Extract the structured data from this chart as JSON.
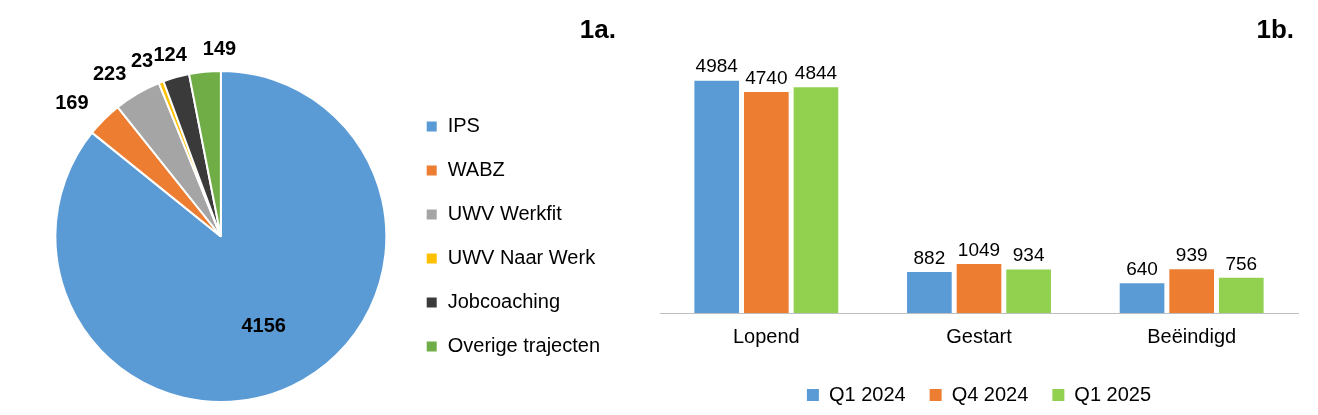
{
  "chart_data": [
    {
      "type": "pie",
      "title": "1a.",
      "categories": [
        "IPS",
        "WABZ",
        "UWV Werkfit",
        "UWV Naar Werk",
        "Jobcoaching",
        "Overige trajecten"
      ],
      "values": [
        4156,
        169,
        223,
        23,
        124,
        149
      ],
      "colors": [
        "#5b9bd5",
        "#ed7d31",
        "#a5a5a5",
        "#ffc000",
        "#3a3a3a",
        "#70ad47"
      ],
      "data_labels": true,
      "legend": "right"
    },
    {
      "type": "bar",
      "title": "1b.",
      "categories": [
        "Lopend",
        "Gestart",
        "Beëindigd"
      ],
      "series": [
        {
          "name": "Q1 2024",
          "color": "#5b9bd5",
          "values": [
            4984,
            882,
            640
          ]
        },
        {
          "name": "Q4 2024",
          "color": "#ed7d31",
          "values": [
            4740,
            1049,
            939
          ]
        },
        {
          "name": "Q1 2025",
          "color": "#92d050",
          "values": [
            4844,
            934,
            756
          ]
        }
      ],
      "data_labels": true,
      "legend": "bottom"
    }
  ]
}
